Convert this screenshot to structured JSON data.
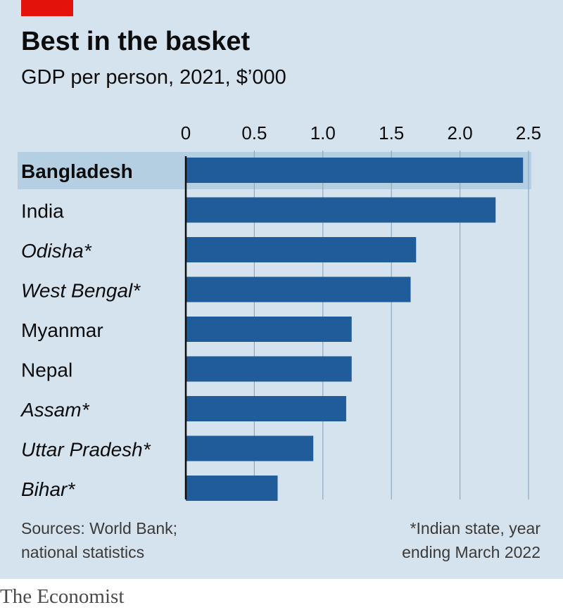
{
  "header": {
    "title": "Best in the basket",
    "subtitle": "GDP per person, 2021, $’000"
  },
  "chart_data": {
    "type": "bar",
    "orientation": "horizontal",
    "categories": [
      "Bangladesh",
      "India",
      "Odisha*",
      "West Bengal*",
      "Myanmar",
      "Nepal",
      "Assam*",
      "Uttar Pradesh*",
      "Bihar*"
    ],
    "values": [
      2.46,
      2.26,
      1.68,
      1.64,
      1.21,
      1.21,
      1.17,
      0.93,
      0.67
    ],
    "highlight": "Bangladesh",
    "italic_categories": [
      "Odisha*",
      "West Bengal*",
      "Assam*",
      "Uttar Pradesh*",
      "Bihar*"
    ],
    "xlim": [
      0,
      2.5
    ],
    "xticks": [
      "0",
      "0.5",
      "1.0",
      "1.5",
      "2.0",
      "2.5"
    ],
    "xtick_values": [
      0,
      0.5,
      1.0,
      1.5,
      2.0,
      2.5
    ],
    "grid": true,
    "bar_color": "#1f5c99",
    "highlight_band_color": "#b4cfe2",
    "grid_color": "#8fa9bf"
  },
  "footer": {
    "sources_line1": "Sources: World Bank;",
    "sources_line2": "national statistics",
    "note_line1": "*Indian state, year",
    "note_line2": "ending March 2022",
    "brand": "The Economist"
  },
  "colors": {
    "panel_background": "#d5e3ef",
    "accent_red": "#e3120b"
  }
}
